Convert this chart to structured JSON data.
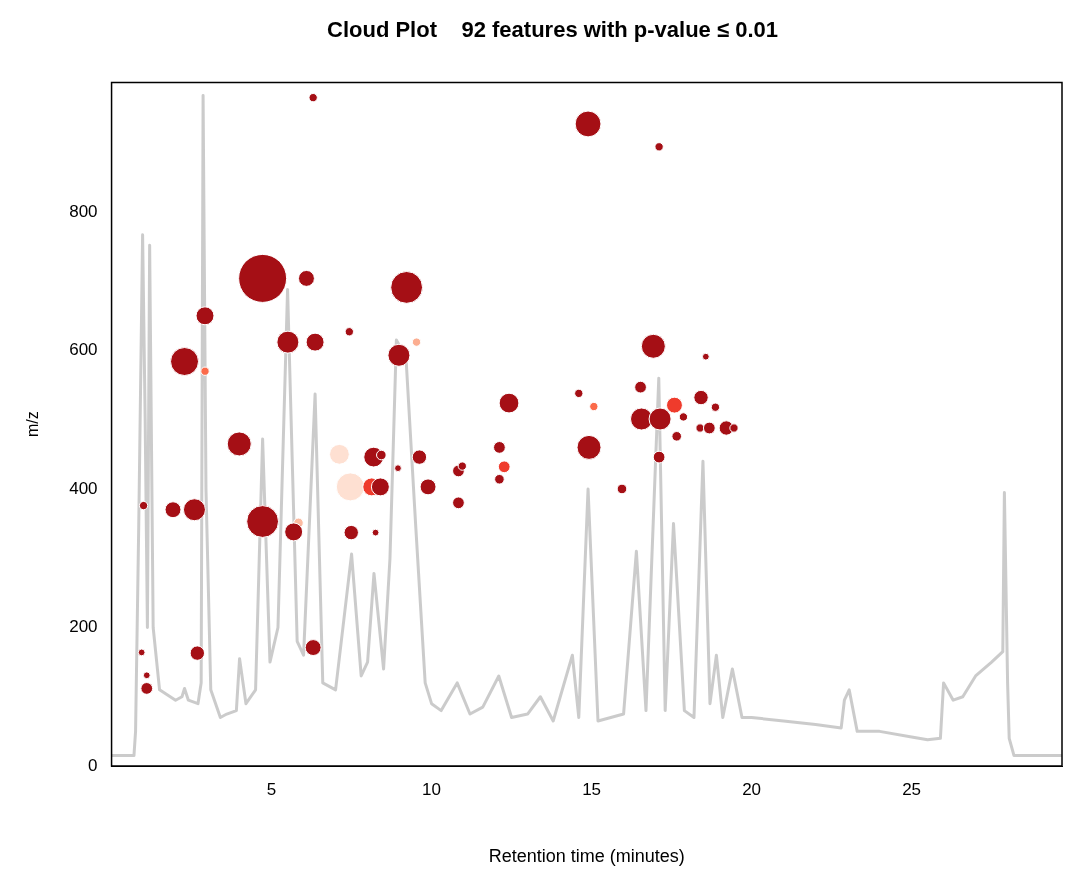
{
  "chart_data": {
    "type": "bubble",
    "title": "Cloud Plot    92 features with p-value ≤ 0.01",
    "xlabel": "Retention time (minutes)",
    "ylabel": "m/z",
    "xlim": [
      0,
      29.7
    ],
    "ylim": [
      0,
      987
    ],
    "xticks": [
      5,
      10,
      15,
      20,
      25
    ],
    "yticks": [
      0,
      200,
      400,
      600,
      800
    ],
    "grid": false,
    "legend": false,
    "series": [
      {
        "type": "line",
        "color": "#bebebe",
        "marker": "none",
        "x": [
          0,
          0.7,
          0.75,
          0.85,
          0.97,
          1.05,
          1.12,
          1.19,
          1.3,
          1.5,
          2.0,
          2.2,
          2.28,
          2.4,
          2.7,
          2.8,
          2.86,
          2.95,
          3.1,
          3.4,
          3.6,
          3.9,
          4.0,
          4.2,
          4.5,
          4.72,
          4.95,
          5.2,
          5.5,
          5.8,
          6.0,
          6.36,
          6.6,
          7.0,
          7.5,
          7.8,
          8.0,
          8.2,
          8.5,
          8.7,
          8.9,
          9.2,
          9.5,
          9.8,
          10.0,
          10.3,
          10.8,
          11.2,
          11.6,
          12.1,
          12.5,
          13.0,
          13.4,
          13.8,
          14.4,
          14.6,
          14.89,
          15.2,
          15.6,
          16.0,
          16.4,
          16.7,
          17.1,
          17.3,
          17.56,
          17.9,
          18.2,
          18.48,
          18.7,
          18.9,
          19.1,
          19.4,
          19.7,
          20.0,
          21.0,
          22.0,
          22.8,
          22.9,
          23.05,
          23.3,
          24.0,
          25.0,
          25.5,
          25.9,
          26.0,
          26.3,
          26.6,
          27.0,
          27.5,
          27.85,
          27.9,
          28.0,
          28.05,
          28.2,
          29.7
        ],
        "values": [
          15,
          15,
          50,
          350,
          767,
          500,
          200,
          752,
          200,
          110,
          95,
          100,
          112,
          95,
          90,
          120,
          968,
          400,
          110,
          70,
          75,
          80,
          155,
          90,
          110,
          472,
          150,
          200,
          688,
          180,
          160,
          537,
          120,
          110,
          306,
          130,
          150,
          278,
          140,
          300,
          615,
          590,
          350,
          120,
          90,
          80,
          120,
          75,
          85,
          130,
          70,
          75,
          100,
          65,
          160,
          70,
          400,
          65,
          70,
          75,
          310,
          80,
          560,
          80,
          350,
          80,
          70,
          440,
          90,
          160,
          70,
          140,
          70,
          70,
          65,
          60,
          55,
          95,
          110,
          50,
          50,
          42,
          38,
          40,
          120,
          95,
          100,
          130,
          150,
          165,
          395,
          120,
          40,
          15,
          15
        ]
      },
      {
        "marker": "circle",
        "x": [
          6.3,
          14.89,
          17.11,
          4.72,
          6.09,
          9.22,
          2.92,
          2.28,
          2.92,
          5.51,
          6.36,
          7.43,
          8.98,
          9.53,
          16.93,
          18.57,
          3.99,
          7.12,
          8.19,
          8.43,
          8.95,
          9.62,
          7.46,
          8.13,
          8.4,
          9.89,
          1.0,
          1.92,
          2.59,
          4.72,
          5.84,
          5.69,
          7.49,
          8.25,
          0.94,
          1.1,
          1.1,
          2.68,
          6.3,
          12.42,
          14.6,
          15.07,
          16.53,
          16.56,
          17.14,
          17.59,
          18.42,
          18.87,
          17.87,
          17.66,
          18.39,
          18.68,
          19.21,
          19.45,
          14.92,
          17.11,
          15.95,
          12.12,
          12.27,
          12.12,
          10.84,
          10.96,
          10.84
        ],
        "values": [
          965,
          927,
          894,
          704,
          704,
          691,
          650,
          584,
          570,
          612,
          612,
          627,
          593,
          612,
          606,
          591,
          465,
          450,
          446,
          449,
          430,
          446,
          403,
          403,
          403,
          403,
          376,
          370,
          370,
          353,
          351,
          338,
          337,
          337,
          164,
          131,
          112,
          163,
          171,
          524,
          538,
          519,
          547,
          501,
          501,
          521,
          532,
          518,
          504,
          476,
          488,
          488,
          488,
          488,
          460,
          446,
          400,
          460,
          432,
          414,
          426,
          433,
          380
        ],
        "sizes": [
          0.03,
          0.29,
          0.03,
          1,
          0.11,
          0.44,
          0.14,
          0.34,
          0.03,
          0.21,
          0.14,
          0.03,
          0.21,
          0.03,
          0.25,
          0.02,
          0.25,
          0.17,
          0.17,
          0.04,
          0.02,
          0.09,
          0.34,
          0.14,
          0.14,
          0.11,
          0.03,
          0.11,
          0.21,
          0.44,
          0.04,
          0.14,
          0.09,
          0.02,
          0.02,
          0.02,
          0.06,
          0.09,
          0.11,
          0.17,
          0.03,
          0.03,
          0.06,
          0.21,
          0.21,
          0.11,
          0.09,
          0.03,
          0.03,
          0.04,
          0.03,
          0.06,
          0.09,
          0.03,
          0.25,
          0.06,
          0.04,
          0.06,
          0.06,
          0.04,
          0.06,
          0.03,
          0.06
        ],
        "colors": [
          "#a50f15",
          "#a50f15",
          "#a50f15",
          "#a50f15",
          "#a50f15",
          "#a50f15",
          "#a50f15",
          "#a50f15",
          "#fb6a4a",
          "#a50f15",
          "#a50f15",
          "#a50f15",
          "#a50f15",
          "#fcae91",
          "#a50f15",
          "#a50f15",
          "#a50f15",
          "#fee0d2",
          "#a50f15",
          "#a50f15",
          "#a50f15",
          "#a50f15",
          "#fee0d2",
          "#ef3b2c",
          "#a50f15",
          "#a50f15",
          "#a50f15",
          "#a50f15",
          "#a50f15",
          "#a50f15",
          "#fcbba1",
          "#a50f15",
          "#a50f15",
          "#a50f15",
          "#a50f15",
          "#a50f15",
          "#a50f15",
          "#a50f15",
          "#a50f15",
          "#a50f15",
          "#a50f15",
          "#fb6a4a",
          "#a50f15",
          "#a50f15",
          "#a50f15",
          "#ef3b2c",
          "#a50f15",
          "#a50f15",
          "#a50f15",
          "#a50f15",
          "#a50f15",
          "#a50f15",
          "#a50f15",
          "#a50f15",
          "#a50f15",
          "#a50f15",
          "#a50f15",
          "#a50f15",
          "#ef3b2c",
          "#a50f15",
          "#a50f15",
          "#a50f15",
          "#a50f15"
        ]
      }
    ]
  }
}
